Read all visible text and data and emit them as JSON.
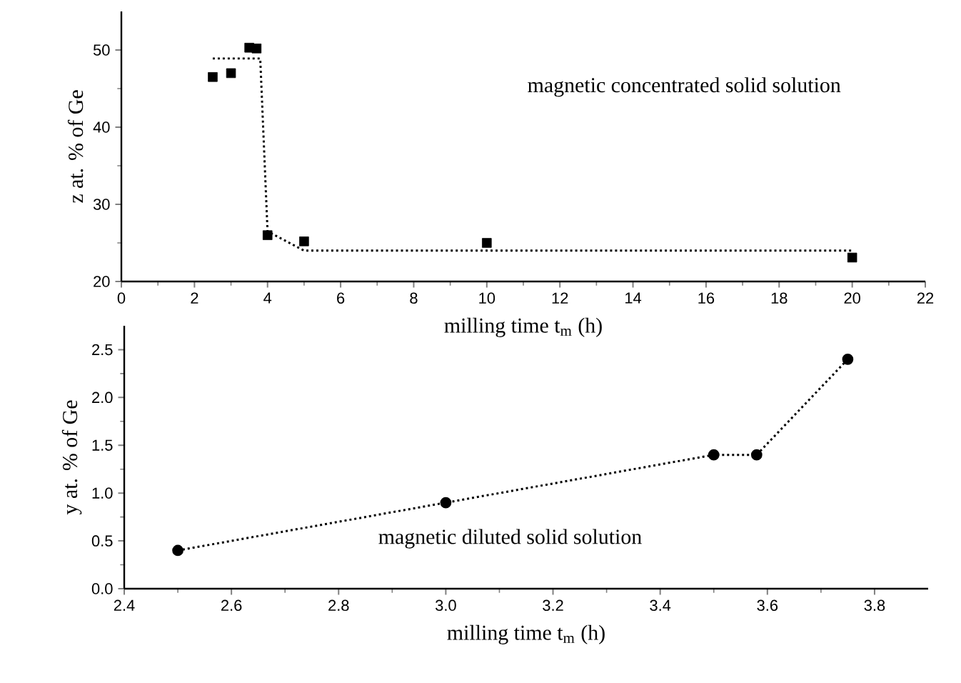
{
  "chart_data": [
    {
      "type": "scatter",
      "xlabel": "milling time t$_{m}$ (h)",
      "ylabel": "z at. % of Ge",
      "xlim": [
        0,
        22
      ],
      "ylim": [
        20,
        55
      ],
      "xticks": [
        0,
        2,
        4,
        6,
        8,
        10,
        12,
        14,
        16,
        18,
        20,
        22
      ],
      "yticks": [
        20,
        30,
        40,
        50
      ],
      "series": [
        {
          "type": "scatter",
          "marker": "square",
          "color": "#000000",
          "x": [
            2.5,
            3,
            3.5,
            3.7,
            4,
            5,
            10,
            20
          ],
          "values": [
            46.5,
            47,
            50.3,
            50.2,
            26,
            25.2,
            25,
            23.1
          ]
        },
        {
          "type": "line",
          "marker": "none",
          "line_style": "dotted",
          "color": "#000000",
          "x": [
            2.5,
            3.8,
            4.0,
            5,
            20
          ],
          "values": [
            48.9,
            48.9,
            26.5,
            24,
            24
          ]
        }
      ],
      "annotations": [
        "magnetic concentrated solid solution"
      ]
    },
    {
      "type": "line",
      "marker": "circle",
      "line_style": "dotted",
      "xlabel": "milling time t$_{m}$ (h)",
      "ylabel": "y at. % of Ge",
      "xlim": [
        2.4,
        3.9
      ],
      "ylim": [
        0,
        2.75
      ],
      "xticks": [
        {
          "value": 2.4,
          "label": "2.4"
        },
        {
          "value": 2.6,
          "label": "2.6"
        },
        {
          "value": 2.8,
          "label": "2.8"
        },
        {
          "value": 3.0,
          "label": "3.0"
        },
        {
          "value": 3.2,
          "label": "3.2"
        },
        {
          "value": 3.4,
          "label": "3.4"
        },
        {
          "value": 3.6,
          "label": "3.6"
        },
        {
          "value": 3.8,
          "label": "3.8"
        }
      ],
      "yticks": [
        {
          "value": 0,
          "label": "0.0"
        },
        {
          "value": 0.5,
          "label": "0.5"
        },
        {
          "value": 1.0,
          "label": "1.0"
        },
        {
          "value": 1.5,
          "label": "1.5"
        },
        {
          "value": 2.0,
          "label": "2.0"
        },
        {
          "value": 2.5,
          "label": "2.5"
        }
      ],
      "series": [
        {
          "color": "#000000",
          "x": [
            2.5,
            3.0,
            3.5,
            3.58,
            3.75
          ],
          "values": [
            0.4,
            0.9,
            1.4,
            1.4,
            2.4
          ]
        }
      ],
      "annotations": [
        "magnetic diluted solid solution"
      ]
    }
  ]
}
